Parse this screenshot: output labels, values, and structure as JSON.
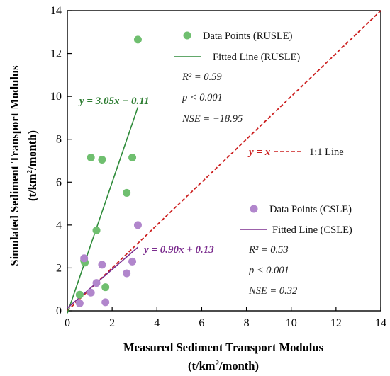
{
  "chart_data": {
    "type": "scatter",
    "title": "",
    "xlabel": "Measured Sediment Transport Modulus",
    "ylabel": "Simulated Sediment Transport Modulus",
    "unit_label_parts": {
      "open": "(t/km",
      "sup": "2",
      "close": "/month)"
    },
    "xlim": [
      0,
      14
    ],
    "ylim": [
      0,
      14
    ],
    "x_ticks": [
      "0",
      "2",
      "4",
      "6",
      "8",
      "10",
      "12",
      "14"
    ],
    "y_ticks": [
      "0",
      "2",
      "4",
      "6",
      "8",
      "10",
      "12",
      "14"
    ],
    "grid": false,
    "series": [
      {
        "name": "Data Points (RUSLE)",
        "color": "#6fbf6f",
        "points": [
          {
            "x": 0.55,
            "y": 0.75
          },
          {
            "x": 0.75,
            "y": 2.35
          },
          {
            "x": 0.78,
            "y": 2.25
          },
          {
            "x": 1.05,
            "y": 7.15
          },
          {
            "x": 1.3,
            "y": 3.75
          },
          {
            "x": 1.55,
            "y": 7.05
          },
          {
            "x": 1.7,
            "y": 1.1
          },
          {
            "x": 2.65,
            "y": 5.5
          },
          {
            "x": 2.9,
            "y": 7.15
          },
          {
            "x": 3.15,
            "y": 12.65
          }
        ]
      },
      {
        "name": "Data Points (CSLE)",
        "color": "#b186cc",
        "points": [
          {
            "x": 0.55,
            "y": 0.35
          },
          {
            "x": 0.75,
            "y": 2.45
          },
          {
            "x": 1.05,
            "y": 0.85
          },
          {
            "x": 1.3,
            "y": 1.3
          },
          {
            "x": 1.55,
            "y": 2.15
          },
          {
            "x": 1.7,
            "y": 0.4
          },
          {
            "x": 2.65,
            "y": 1.75
          },
          {
            "x": 2.9,
            "y": 2.3
          },
          {
            "x": 3.15,
            "y": 4.0
          }
        ]
      }
    ],
    "fitted_lines": [
      {
        "name": "Fitted Line (RUSLE)",
        "color": "#2e8b3a",
        "slope": 3.05,
        "intercept": -0.11,
        "x_range": [
          0,
          3.15
        ],
        "equation": "y = 3.05x − 0.11",
        "equation_color": "#2e7d32",
        "stats": [
          "R² = 0.59",
          "p < 0.001",
          "NSE = −18.95"
        ]
      },
      {
        "name": "Fitted Line (CSLE)",
        "color": "#7b2d8e",
        "slope": 0.9,
        "intercept": 0.13,
        "x_range": [
          0,
          3.15
        ],
        "equation": "y = 0.90x + 0.13",
        "equation_color": "#7b2d8e",
        "stats": [
          "R² = 0.53",
          "p < 0.001",
          "NSE = 0.32"
        ]
      }
    ],
    "reference_line": {
      "name": "1:1 Line",
      "equation": "y = x",
      "color": "#cc1f1f",
      "style": "dashed"
    },
    "legend_placement": "inside, upper-middle and middle-right"
  }
}
